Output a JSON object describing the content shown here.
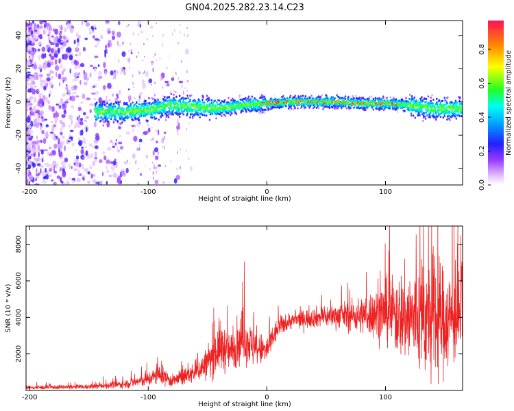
{
  "title": "GN04.2025.282.23.14.C23",
  "colors": {
    "snr_line": "#ee2222",
    "axis": "#000000"
  },
  "chart_data": [
    {
      "type": "heatmap",
      "xlabel": "Height of straight line (km)",
      "ylabel": "Frequency (Hz)",
      "xlim": [
        -203,
        165
      ],
      "ylim": [
        -50,
        49
      ],
      "xticks": [
        -200,
        -100,
        0,
        100
      ],
      "yticks": [
        -40,
        -20,
        0,
        20,
        40
      ],
      "ridge": {
        "description": "narrow high-amplitude band near 0 Hz",
        "x": [
          -145,
          -120,
          -100,
          -80,
          -60,
          -40,
          -20,
          0,
          20,
          40,
          60,
          80,
          100,
          120,
          140,
          165
        ],
        "freq_hz": [
          -6,
          -6,
          -5,
          -2,
          -3,
          -4,
          -2,
          -1,
          0,
          0,
          0,
          -1,
          -1,
          -2,
          -4,
          -4
        ]
      },
      "colorbar": {
        "label": "Normalized spectral amplitude",
        "ticks": [
          0.0,
          0.2,
          0.4,
          0.6,
          0.8
        ],
        "range": [
          0,
          0.97
        ]
      }
    },
    {
      "type": "line",
      "xlabel": "Height of straight line (km)",
      "ylabel": "SNR (10 * v/v)",
      "xlim": [
        -203,
        165
      ],
      "ylim": [
        0,
        9000
      ],
      "xticks": [
        -200,
        -100,
        0,
        100
      ],
      "yticks": [
        2000,
        4000,
        6000,
        8000
      ],
      "envelope": {
        "x": [
          -203,
          -150,
          -120,
          -100,
          -90,
          -80,
          -60,
          -50,
          -40,
          -30,
          -20,
          -10,
          0,
          10,
          20,
          40,
          60,
          80,
          100,
          120,
          140,
          165
        ],
        "y": [
          150,
          200,
          350,
          600,
          900,
          500,
          1000,
          1500,
          2400,
          2100,
          3000,
          2200,
          2200,
          3500,
          3800,
          4000,
          4100,
          4100,
          4300,
          4000,
          3800,
          4000
        ],
        "amp": [
          100,
          120,
          200,
          350,
          500,
          300,
          500,
          800,
          1300,
          900,
          1300,
          900,
          700,
          500,
          400,
          500,
          600,
          900,
          1500,
          2500,
          3000,
          2000
        ]
      }
    }
  ]
}
